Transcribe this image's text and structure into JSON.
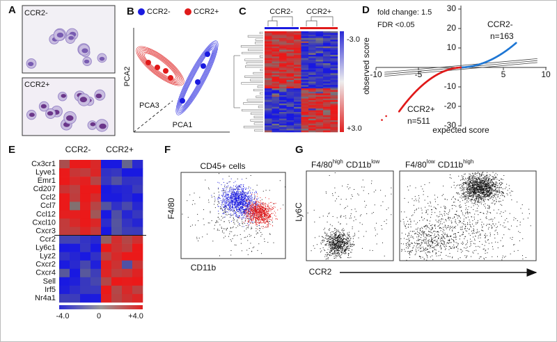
{
  "panels": {
    "a": {
      "label": "A",
      "images": [
        "CCR2-",
        "CCR2+"
      ]
    },
    "b": {
      "label": "B",
      "legend": [
        "CCR2-",
        "CCR2+"
      ],
      "axes": [
        "PCA2",
        "PCA1",
        "PCA3"
      ]
    },
    "c": {
      "label": "C",
      "groups": [
        "CCR2-",
        "CCR2+"
      ],
      "colorbar": [
        "-3.0",
        "+3.0"
      ]
    },
    "d": {
      "label": "D",
      "notes": [
        "fold change: 1.5",
        "FDR <0.05"
      ],
      "groups": [
        {
          "name": "CCR2-",
          "count": "n=163"
        },
        {
          "name": "CCR2+",
          "count": "n=511"
        }
      ],
      "ylabel": "observed score",
      "xlabel": "expected score",
      "xticks": [
        -10,
        -5,
        5,
        10
      ],
      "yticks": [
        30,
        20,
        10,
        -10,
        -20,
        -30
      ]
    },
    "e": {
      "label": "E",
      "groups": [
        "CCR2-",
        "CCR2+"
      ],
      "genes": [
        "Cx3cr1",
        "Lyve1",
        "Emr1",
        "Cd207",
        "Ccl2",
        "Ccl7",
        "Ccl12",
        "Cxcl10",
        "Cxcr3",
        "Ccr2",
        "Ly6c1",
        "Lyz2",
        "Cxcr2",
        "Cxcr4",
        "Sell",
        "Irf5",
        "Nr4a1"
      ],
      "colorbar": [
        "-4.0",
        0,
        "+4.0"
      ]
    },
    "f": {
      "label": "F",
      "title": "CD45+ cells",
      "ylabel": "F4/80",
      "xlabel": "CD11b"
    },
    "g": {
      "label": "G",
      "plots": [
        [
          "F4/80",
          "high",
          "CD11b",
          "low"
        ],
        [
          "F4/80",
          "low",
          "CD11b",
          "high"
        ]
      ],
      "ylabel": "Ly6C",
      "xlabel": "CCR2"
    }
  }
}
